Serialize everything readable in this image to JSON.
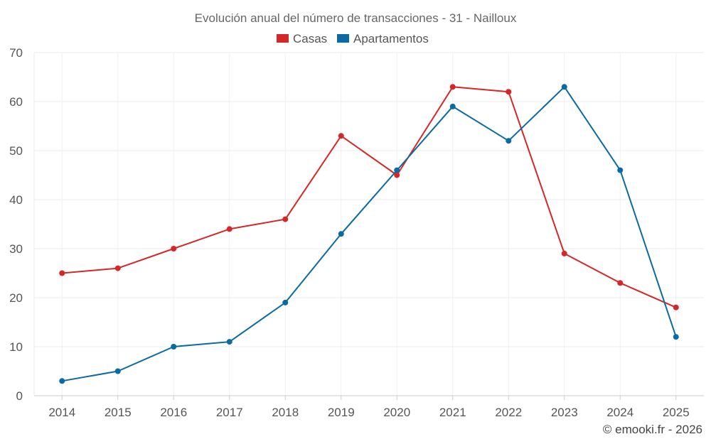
{
  "chart_data": {
    "type": "line",
    "title": "Evolución anual del número de transacciones - 31 - Nailloux",
    "categories": [
      "2014",
      "2015",
      "2016",
      "2017",
      "2018",
      "2019",
      "2020",
      "2021",
      "2022",
      "2023",
      "2024",
      "2025"
    ],
    "series": [
      {
        "name": "Casas",
        "color": "#d62728",
        "values": [
          25,
          26,
          30,
          34,
          36,
          53,
          45,
          63,
          62,
          29,
          23,
          18
        ]
      },
      {
        "name": "Apartamentos",
        "color": "#0b6aa2",
        "values": [
          3,
          5,
          10,
          11,
          19,
          33,
          46,
          59,
          52,
          63,
          46,
          12
        ]
      }
    ],
    "ylim": [
      0,
      70
    ],
    "yticks": [
      "0",
      "10",
      "20",
      "30",
      "40",
      "50",
      "60",
      "70"
    ],
    "xlabel": "",
    "ylabel": "",
    "legend_position": "top-center",
    "grid": true
  },
  "credit": "© emooki.fr - 2026"
}
